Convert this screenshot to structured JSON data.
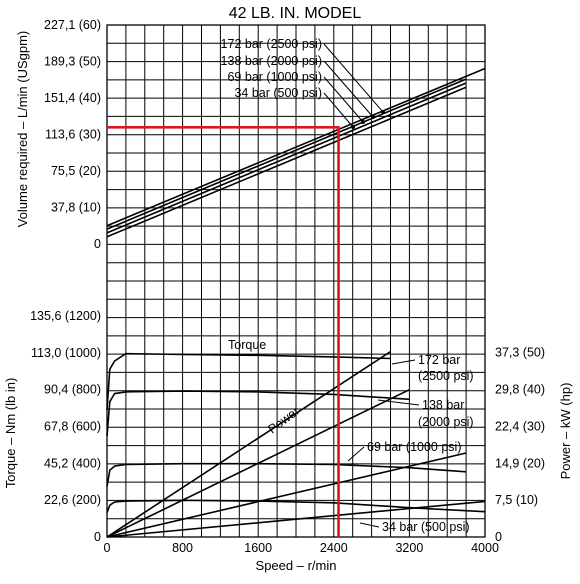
{
  "chart_data": {
    "type": "line",
    "title": "42 LB. IN. MODEL",
    "xlabel": "Speed – r/min",
    "x_ticks": [
      {
        "value": 0,
        "label": "0"
      },
      {
        "value": 800,
        "label": "800"
      },
      {
        "value": 1600,
        "label": "1600"
      },
      {
        "value": 2400,
        "label": "2400"
      },
      {
        "value": 3200,
        "label": "3200"
      },
      {
        "value": 4000,
        "label": "4000"
      }
    ],
    "xlim": [
      0,
      4000
    ],
    "grid": true,
    "top_panel": {
      "ylabel": "Volume required – L/min (USgpm)",
      "ylim": [
        0,
        227.1
      ],
      "y_ticks": [
        {
          "value": 0,
          "label": "0"
        },
        {
          "value": 37.8,
          "label": "37,8 (10)"
        },
        {
          "value": 75.5,
          "label": "75,5 (20)"
        },
        {
          "value": 113.6,
          "label": "113,6 (30)"
        },
        {
          "value": 151.4,
          "label": "151,4 (40)"
        },
        {
          "value": 189.3,
          "label": "189,3 (50)"
        },
        {
          "value": 227.1,
          "label": "227,1 (60)"
        }
      ],
      "series": [
        {
          "name": "172 bar (2500 psi)",
          "x": [
            0,
            4000
          ],
          "y": [
            19,
            182
          ]
        },
        {
          "name": "138 bar (2000 psi)",
          "x": [
            0,
            3800
          ],
          "y": [
            15.5,
            171
          ]
        },
        {
          "name": "69 bar (1000 psi)",
          "x": [
            0,
            3800
          ],
          "y": [
            11.5,
            167
          ]
        },
        {
          "name": "34 bar (500 psi)",
          "x": [
            0,
            3800
          ],
          "y": [
            7.5,
            162.5
          ]
        }
      ]
    },
    "bottom_panel": {
      "ylabel_left": "Torque – Nm (lb in)",
      "ylabel_right": "Power – kW (hp)",
      "ylim_left": [
        0,
        135.6
      ],
      "ylim_right": [
        0,
        44.7
      ],
      "y_ticks_left": [
        {
          "value": 0,
          "label": "0"
        },
        {
          "value": 22.6,
          "label": "22,6 (200)"
        },
        {
          "value": 45.2,
          "label": "45,2 (400)"
        },
        {
          "value": 67.8,
          "label": "67,8 (600)"
        },
        {
          "value": 90.4,
          "label": "90,4 (800)"
        },
        {
          "value": 113.0,
          "label": "113,0 (1000)"
        },
        {
          "value": 135.6,
          "label": "135,6 (1200)"
        }
      ],
      "y_ticks_right": [
        {
          "value": 0,
          "label": "0"
        },
        {
          "value": 7.5,
          "label": "7,5 (10)"
        },
        {
          "value": 14.9,
          "label": "14,9 (20)"
        },
        {
          "value": 22.4,
          "label": "22,4 (30)"
        },
        {
          "value": 29.8,
          "label": "29,8 (40)"
        },
        {
          "value": 37.3,
          "label": "37,3 (50)"
        }
      ],
      "torque_series": [
        {
          "name": "172 bar (2500 psi)",
          "x": [
            0,
            30,
            80,
            200,
            800,
            1600,
            2400,
            3000
          ],
          "y": [
            78,
            103,
            108,
            112.5,
            112,
            111.5,
            110.5,
            109.5
          ]
        },
        {
          "name": "138 bar (2000 psi)",
          "x": [
            0,
            30,
            80,
            200,
            800,
            1600,
            2400,
            3200
          ],
          "y": [
            62,
            83,
            88,
            89,
            89.5,
            89,
            87.5,
            84.5
          ]
        },
        {
          "name": "69 bar (1000 psi)",
          "x": [
            0,
            30,
            80,
            200,
            800,
            1600,
            2400,
            3200,
            3800
          ],
          "y": [
            31,
            41,
            43.5,
            44.5,
            45,
            45,
            44.5,
            42.5,
            40
          ]
        },
        {
          "name": "34 bar (500 psi)",
          "x": [
            0,
            30,
            80,
            200,
            800,
            1600,
            2400,
            3200,
            4000
          ],
          "y": [
            15,
            19.5,
            21.5,
            22,
            22.5,
            22,
            21,
            18,
            15.5
          ]
        }
      ],
      "power_series": [
        {
          "name": "172 bar (2500 psi)",
          "x": [
            0,
            3000
          ],
          "y": [
            0,
            37.5
          ]
        },
        {
          "name": "138 bar (2000 psi)",
          "x": [
            0,
            3200
          ],
          "y": [
            0,
            29.8
          ]
        },
        {
          "name": "69 bar (1000 psi)",
          "x": [
            0,
            3800
          ],
          "y": [
            0,
            17
          ]
        },
        {
          "name": "34 bar (500 psi)",
          "x": [
            0,
            4000
          ],
          "y": [
            0,
            7.2
          ]
        }
      ],
      "torque_label": "Torque",
      "power_label": "Power"
    },
    "reference_line": {
      "x": 2450,
      "y": 121
    }
  }
}
